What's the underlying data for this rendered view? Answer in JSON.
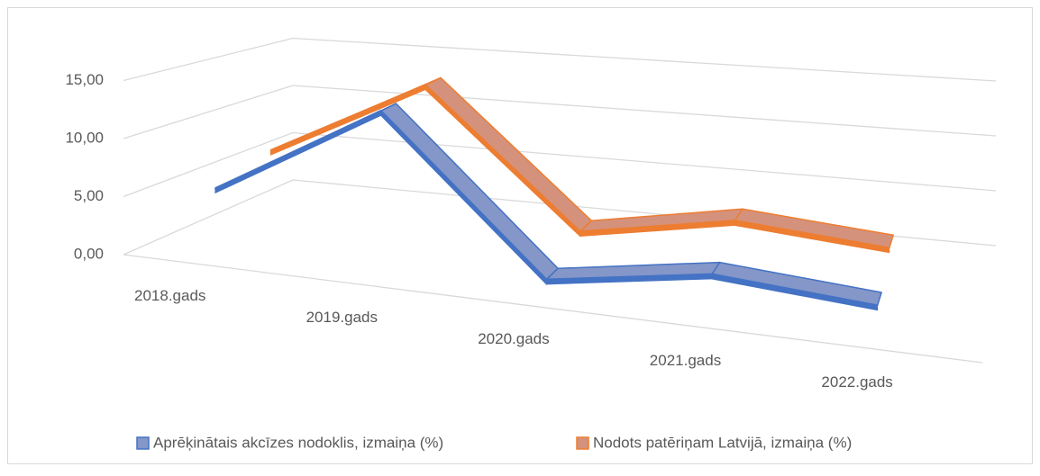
{
  "chart_data": {
    "type": "line3d",
    "categories": [
      "2018.gads",
      "2019.gads",
      "2020.gads",
      "2021.gads",
      "2022.gads"
    ],
    "series": [
      {
        "name": "Aprēķinātais akcīzes nodoklis, izmaiņa (%)",
        "color": "#4472c4",
        "fill": "#8497c8",
        "values": [
          5.2,
          13.8,
          0.6,
          2.8,
          1.8
        ]
      },
      {
        "name": "Nodots patēriņam Latvijā, izmaiņa (%)",
        "color": "#ed7d31",
        "fill": "#d4927c",
        "values": [
          6.6,
          14.2,
          2.0,
          4.5,
          3.5
        ]
      }
    ],
    "ylim": [
      0,
      15
    ],
    "yticks": [
      {
        "value": 0,
        "label": "0,00"
      },
      {
        "value": 5,
        "label": "5,00"
      },
      {
        "value": 10,
        "label": "10,00"
      },
      {
        "value": 15,
        "label": "15,00"
      }
    ],
    "grid": true,
    "legend": "bottom"
  }
}
